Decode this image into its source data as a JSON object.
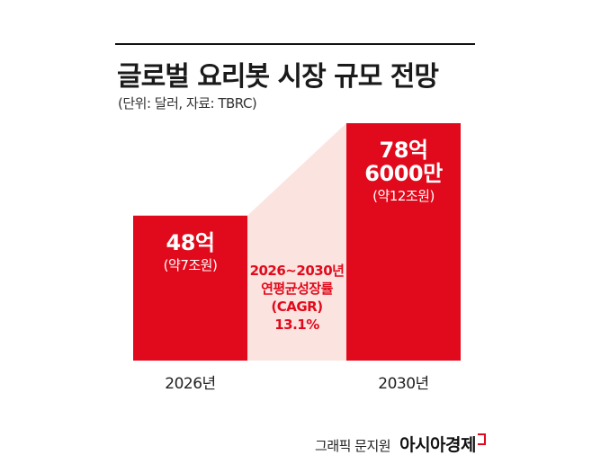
{
  "title": "글로벌 요리봇 시장 규모 전망",
  "subtitle": "(단위: 달러, 자료: TBRC)",
  "chart_data": {
    "type": "bar",
    "categories": [
      "2026년",
      "2030년"
    ],
    "values": [
      4800000000,
      7860000000
    ],
    "value_labels": [
      {
        "main": [
          "48억"
        ],
        "sub": "(약7조원)"
      },
      {
        "main": [
          "78억",
          "6000만"
        ],
        "sub": "(약12조원)"
      }
    ],
    "annotation": [
      "2026~2030년",
      "연평균성장률",
      "(CAGR)",
      "13.1%"
    ],
    "colors": {
      "bar": "#e10a1c",
      "band": "#fbe4e0",
      "annotation": "#e10a1c"
    }
  },
  "footer": {
    "credit": "그래픽 문지원",
    "brand": "아시아경제"
  }
}
